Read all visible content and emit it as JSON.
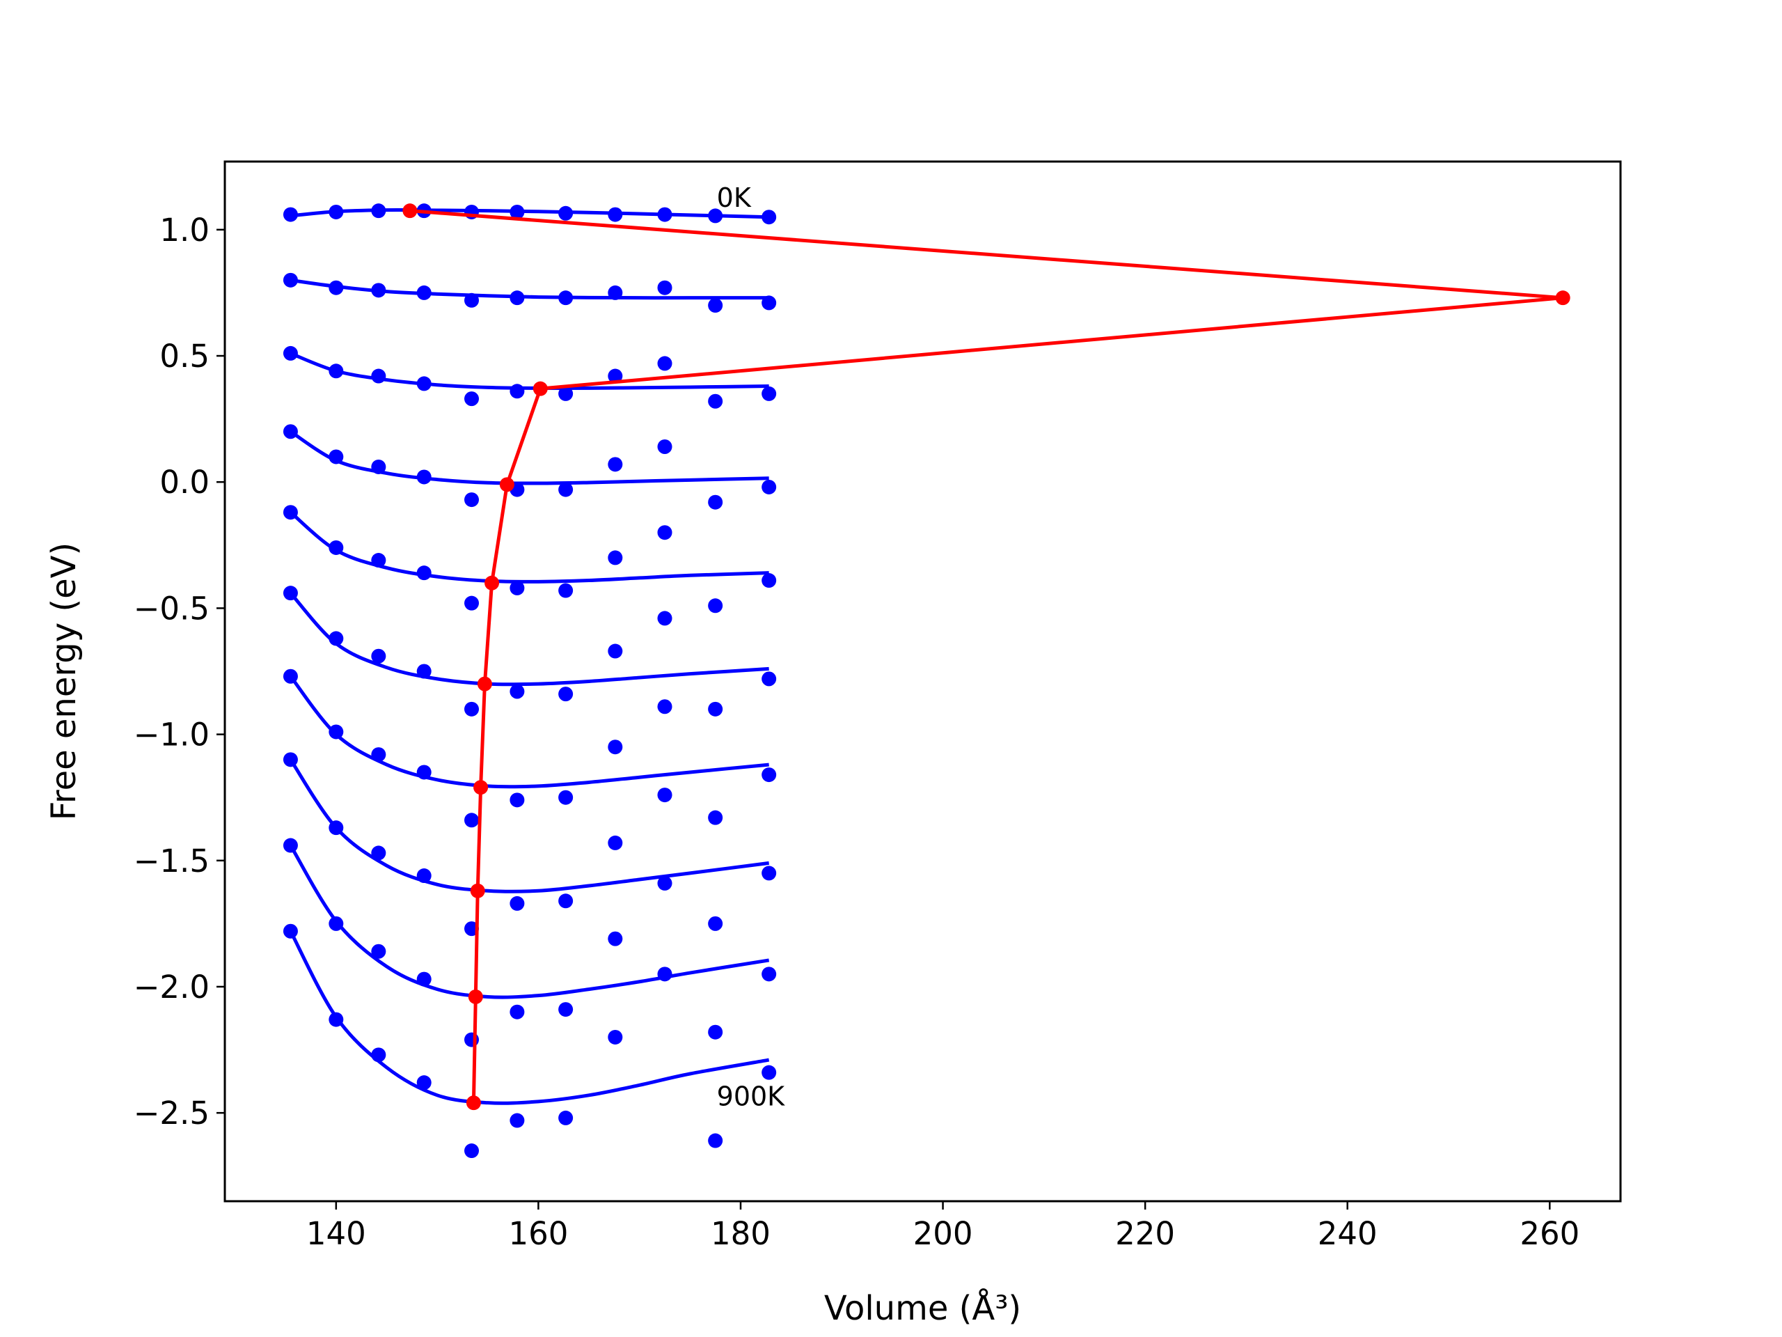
{
  "chart_data": {
    "type": "scatter",
    "xlabel": "Volume",
    "xlabel_unit": "(Å³)",
    "ylabel": "Free energy (eV)",
    "xlim": [
      129,
      267
    ],
    "ylim": [
      -2.85,
      1.27
    ],
    "grid": false,
    "xticks": [
      140,
      160,
      180,
      200,
      220,
      240,
      260
    ],
    "xtick_labels": [
      "140",
      "160",
      "180",
      "200",
      "220",
      "240",
      "260"
    ],
    "yticks": [
      1.0,
      0.5,
      0.0,
      -0.5,
      -1.0,
      -1.5,
      -2.0,
      -2.5
    ],
    "ytick_labels": [
      "1.0",
      "0.5",
      "0.0",
      "−0.5",
      "−1.0",
      "−1.5",
      "−2.0",
      "−2.5"
    ],
    "annotations": [
      {
        "text": "0K",
        "x": 177.5,
        "y": 1.09
      },
      {
        "text": "900K",
        "x": 177.5,
        "y": -2.47
      }
    ],
    "colors": {
      "points": "#0000ff",
      "fit": "#0000ff",
      "equilibrium": "#ff0000"
    },
    "x": [
      135.5,
      140.0,
      144.2,
      148.7,
      153.4,
      157.9,
      162.7,
      167.6,
      172.5,
      177.5,
      182.8
    ],
    "point_series": [
      [
        1.06,
        1.07,
        1.075,
        1.075,
        1.07,
        1.07,
        1.065,
        1.06,
        1.06,
        1.055,
        1.05
      ],
      [
        0.8,
        0.77,
        0.76,
        0.75,
        0.72,
        0.73,
        0.73,
        0.75,
        0.77,
        0.7,
        0.71
      ],
      [
        0.51,
        0.44,
        0.42,
        0.39,
        0.33,
        0.36,
        0.35,
        0.42,
        0.47,
        0.32,
        0.35
      ],
      [
        0.2,
        0.1,
        0.06,
        0.02,
        -0.07,
        -0.03,
        -0.03,
        0.07,
        0.14,
        -0.08,
        -0.02
      ],
      [
        -0.12,
        -0.26,
        -0.31,
        -0.36,
        -0.48,
        -0.42,
        -0.43,
        -0.3,
        -0.2,
        -0.49,
        -0.39
      ],
      [
        -0.44,
        -0.62,
        -0.69,
        -0.75,
        -0.9,
        -0.83,
        -0.84,
        -0.67,
        -0.54,
        -0.9,
        -0.78
      ],
      [
        -0.77,
        -0.99,
        -1.08,
        -1.15,
        -1.34,
        -1.26,
        -1.25,
        -1.05,
        -0.89,
        -1.33,
        -1.16
      ],
      [
        -1.1,
        -1.37,
        -1.47,
        -1.56,
        -1.77,
        -1.67,
        -1.66,
        -1.43,
        -1.24,
        -1.75,
        -1.55
      ],
      [
        -1.44,
        -1.75,
        -1.86,
        -1.97,
        -2.21,
        -2.1,
        -2.09,
        -1.81,
        -1.59,
        -2.18,
        -1.95
      ],
      [
        -1.78,
        -2.13,
        -2.27,
        -2.38,
        -2.65,
        -2.53,
        -2.52,
        -2.2,
        -1.95,
        -2.61,
        -2.34
      ]
    ],
    "fit_series": [
      {
        "x": [
          135.5,
          140,
          145,
          150,
          155,
          160,
          165,
          170,
          175,
          182.8
        ],
        "y": [
          1.055,
          1.072,
          1.078,
          1.077,
          1.075,
          1.072,
          1.068,
          1.063,
          1.058,
          1.05
        ]
      },
      {
        "x": [
          135.5,
          140,
          145,
          150,
          155,
          160,
          165,
          170,
          175,
          182.8
        ],
        "y": [
          0.8,
          0.775,
          0.755,
          0.745,
          0.738,
          0.733,
          0.731,
          0.73,
          0.73,
          0.73
        ]
      },
      {
        "x": [
          135.5,
          140,
          145,
          150,
          155,
          160,
          165,
          170,
          175,
          182.8
        ],
        "y": [
          0.51,
          0.44,
          0.405,
          0.385,
          0.375,
          0.372,
          0.372,
          0.374,
          0.376,
          0.38
        ]
      },
      {
        "x": [
          135.5,
          140,
          145,
          150,
          155,
          160,
          165,
          170,
          175,
          182.8
        ],
        "y": [
          0.2,
          0.085,
          0.035,
          0.01,
          -0.003,
          -0.005,
          -0.002,
          0.003,
          0.008,
          0.015
        ]
      },
      {
        "x": [
          135.5,
          140,
          145,
          150,
          155,
          160,
          165,
          170,
          175,
          182.8
        ],
        "y": [
          -0.12,
          -0.27,
          -0.34,
          -0.375,
          -0.392,
          -0.395,
          -0.39,
          -0.38,
          -0.37,
          -0.36
        ]
      },
      {
        "x": [
          135.5,
          140,
          145,
          150,
          155,
          160,
          165,
          170,
          175,
          182.8
        ],
        "y": [
          -0.44,
          -0.64,
          -0.735,
          -0.78,
          -0.8,
          -0.8,
          -0.79,
          -0.775,
          -0.76,
          -0.74
        ]
      },
      {
        "x": [
          135.5,
          140,
          145,
          150,
          155,
          160,
          165,
          170,
          175,
          182.8
        ],
        "y": [
          -0.77,
          -1.0,
          -1.12,
          -1.18,
          -1.205,
          -1.205,
          -1.19,
          -1.17,
          -1.15,
          -1.12
        ]
      },
      {
        "x": [
          135.5,
          140,
          145,
          150,
          155,
          160,
          165,
          170,
          175,
          182.8
        ],
        "y": [
          -1.1,
          -1.37,
          -1.52,
          -1.595,
          -1.62,
          -1.62,
          -1.6,
          -1.575,
          -1.55,
          -1.51
        ]
      },
      {
        "x": [
          135.5,
          140,
          145,
          150,
          155,
          160,
          165,
          170,
          175,
          182.8
        ],
        "y": [
          -1.44,
          -1.74,
          -1.92,
          -2.01,
          -2.04,
          -2.035,
          -2.01,
          -1.98,
          -1.945,
          -1.895
        ]
      },
      {
        "x": [
          135.5,
          140,
          145,
          150,
          155,
          160,
          165,
          170,
          175,
          182.8
        ],
        "y": [
          -1.78,
          -2.12,
          -2.32,
          -2.43,
          -2.46,
          -2.455,
          -2.43,
          -2.39,
          -2.345,
          -2.29
        ]
      }
    ],
    "equilibrium_path": {
      "x": [
        147.3,
        261.3,
        160.2,
        156.9,
        155.4,
        154.7,
        154.3,
        154.0,
        153.8,
        153.6
      ],
      "y": [
        1.075,
        0.73,
        0.37,
        -0.01,
        -0.4,
        -0.8,
        -1.21,
        -1.62,
        -2.04,
        -2.46
      ]
    }
  }
}
